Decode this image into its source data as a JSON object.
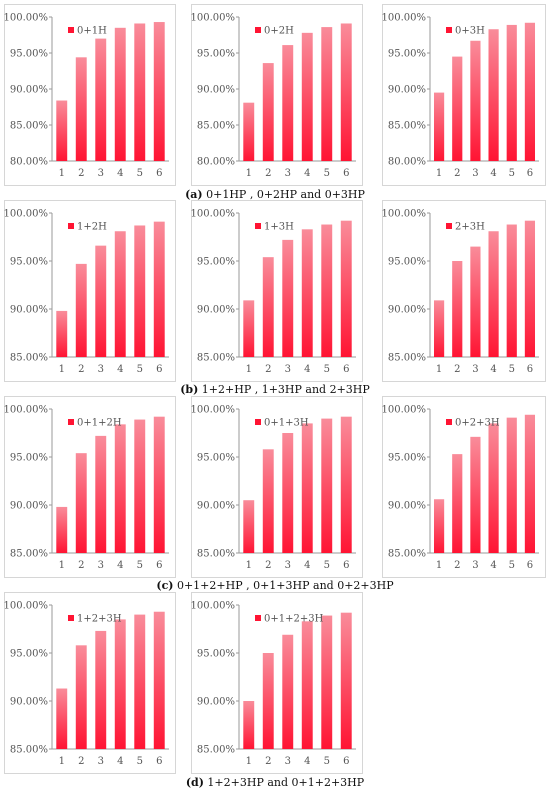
{
  "colors": {
    "bar_top": "#f98c9a",
    "bar_bottom": "#ff1433",
    "axis": "#9a9a9a",
    "text": "#555555",
    "border": "#d6d6d6"
  },
  "captions": [
    {
      "letter": "(a)",
      "text": " 0+1HP , 0+2HP and 0+3HP"
    },
    {
      "letter": "(b)",
      "text": " 1+2+HP , 1+3HP and 2+3HP"
    },
    {
      "letter": "(c)",
      "text": " 0+1+2+HP , 0+1+3HP and 0+2+3HP"
    },
    {
      "letter": "(d)",
      "text": " 1+2+3HP and 0+1+2+3HP"
    }
  ],
  "chart_data": [
    {
      "type": "bar",
      "legend": "0+1H",
      "categories": [
        "1",
        "2",
        "3",
        "4",
        "5",
        "6"
      ],
      "values": [
        88.4,
        94.4,
        97.0,
        98.5,
        99.1,
        99.3
      ],
      "ylim": [
        80,
        100
      ],
      "yticks": [
        "100.00%",
        "95.00%",
        "90.00%",
        "85.00%",
        "80.00%"
      ]
    },
    {
      "type": "bar",
      "legend": "0+2H",
      "categories": [
        "1",
        "2",
        "3",
        "4",
        "5",
        "6"
      ],
      "values": [
        88.1,
        93.6,
        96.1,
        97.8,
        98.6,
        99.1
      ],
      "ylim": [
        80,
        100
      ],
      "yticks": [
        "100.00%",
        "95.00%",
        "90.00%",
        "85.00%",
        "80.00%"
      ]
    },
    {
      "type": "bar",
      "legend": "0+3H",
      "categories": [
        "1",
        "2",
        "3",
        "4",
        "5",
        "6"
      ],
      "values": [
        89.5,
        94.5,
        96.7,
        98.3,
        98.9,
        99.2
      ],
      "ylim": [
        80,
        100
      ],
      "yticks": [
        "100.00%",
        "95.00%",
        "90.00%",
        "85.00%",
        "80.00%"
      ]
    },
    {
      "type": "bar",
      "legend": "1+2H",
      "categories": [
        "1",
        "2",
        "3",
        "4",
        "5",
        "6"
      ],
      "values": [
        89.8,
        94.7,
        96.6,
        98.1,
        98.7,
        99.1
      ],
      "ylim": [
        85,
        100
      ],
      "yticks": [
        "100.00%",
        "95.00%",
        "90.00%",
        "85.00%"
      ]
    },
    {
      "type": "bar",
      "legend": "1+3H",
      "categories": [
        "1",
        "2",
        "3",
        "4",
        "5",
        "6"
      ],
      "values": [
        90.9,
        95.4,
        97.2,
        98.3,
        98.8,
        99.2
      ],
      "ylim": [
        85,
        100
      ],
      "yticks": [
        "100.00%",
        "95.00%",
        "90.00%",
        "85.00%"
      ]
    },
    {
      "type": "bar",
      "legend": "2+3H",
      "categories": [
        "1",
        "2",
        "3",
        "4",
        "5",
        "6"
      ],
      "values": [
        90.9,
        95.0,
        96.5,
        98.1,
        98.8,
        99.2
      ],
      "ylim": [
        85,
        100
      ],
      "yticks": [
        "100.00%",
        "95.00%",
        "90.00%",
        "85.00%"
      ]
    },
    {
      "type": "bar",
      "legend": "0+1+2H",
      "categories": [
        "1",
        "2",
        "3",
        "4",
        "5",
        "6"
      ],
      "values": [
        89.8,
        95.4,
        97.2,
        98.4,
        98.9,
        99.2
      ],
      "ylim": [
        85,
        100
      ],
      "yticks": [
        "100.00%",
        "95.00%",
        "90.00%",
        "85.00%"
      ]
    },
    {
      "type": "bar",
      "legend": "0+1+3H",
      "categories": [
        "1",
        "2",
        "3",
        "4",
        "5",
        "6"
      ],
      "values": [
        90.5,
        95.8,
        97.5,
        98.5,
        99.0,
        99.2
      ],
      "ylim": [
        85,
        100
      ],
      "yticks": [
        "100.00%",
        "95.00%",
        "90.00%",
        "85.00%"
      ]
    },
    {
      "type": "bar",
      "legend": "0+2+3H",
      "categories": [
        "1",
        "2",
        "3",
        "4",
        "5",
        "6"
      ],
      "values": [
        90.6,
        95.3,
        97.1,
        98.5,
        99.1,
        99.4
      ],
      "ylim": [
        85,
        100
      ],
      "yticks": [
        "100.00%",
        "95.00%",
        "90.00%",
        "85.00%"
      ]
    },
    {
      "type": "bar",
      "legend": "1+2+3H",
      "categories": [
        "1",
        "2",
        "3",
        "4",
        "5",
        "6"
      ],
      "values": [
        91.3,
        95.8,
        97.3,
        98.5,
        99.0,
        99.3
      ],
      "ylim": [
        85,
        100
      ],
      "yticks": [
        "100.00%",
        "95.00%",
        "90.00%",
        "85.00%"
      ]
    },
    {
      "type": "bar",
      "legend": "0+1+2+3H",
      "categories": [
        "1",
        "2",
        "3",
        "4",
        "5",
        "6"
      ],
      "values": [
        90.0,
        95.0,
        96.9,
        98.3,
        98.9,
        99.2
      ],
      "ylim": [
        85,
        100
      ],
      "yticks": [
        "100.00%",
        "95.00%",
        "90.00%",
        "85.00%"
      ]
    }
  ]
}
